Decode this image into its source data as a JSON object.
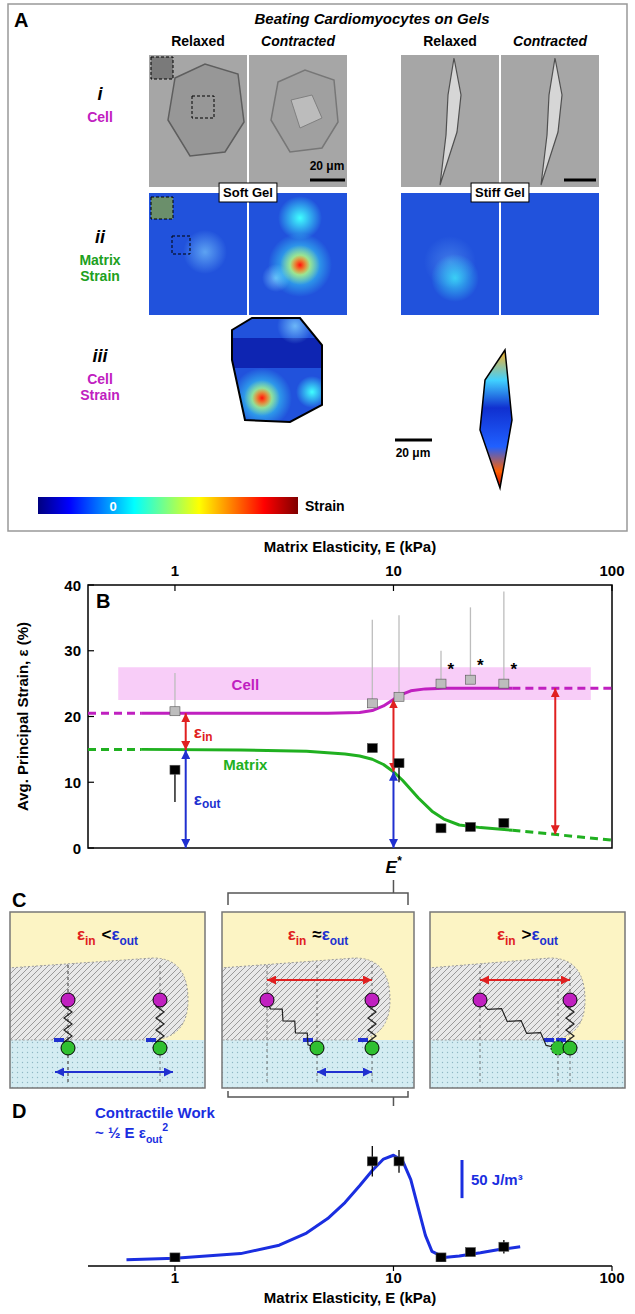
{
  "panel_a": {
    "letter": "A",
    "title": "Beating Cardiomyocytes on Gels",
    "columns": [
      "Relaxed",
      "Contracted",
      "Relaxed",
      "Contracted"
    ],
    "rows": [
      {
        "numeral": "i",
        "label": "Cell",
        "color": "#c020c0"
      },
      {
        "numeral": "ii",
        "label": "Matrix Strain",
        "color": "#20a020"
      },
      {
        "numeral": "iii",
        "label": "Cell Strain",
        "color": "#c020c0"
      }
    ],
    "gels": [
      "Soft Gel",
      "Stiff Gel"
    ],
    "scale_bar": "20 μm",
    "colorbar": {
      "ticks": [
        0
      ],
      "label": "Strain"
    }
  },
  "chart_data": [
    {
      "type": "scatter",
      "panel_label": "B",
      "x_label": "Matrix Elasticity, E (kPa)",
      "y_label": "Avg. Principal Strain, ε (%)",
      "log": "x",
      "xlim": [
        0.4,
        100
      ],
      "xticks": [
        1,
        10,
        100
      ],
      "ylim": [
        0,
        40
      ],
      "yticks": [
        0,
        10,
        20,
        30,
        40
      ],
      "series": [
        {
          "type": "band",
          "color": "#f090f0",
          "x": [
            0.55,
            80
          ],
          "low": [
            22.5,
            22.5
          ],
          "values": [
            27.5,
            27.5
          ]
        },
        {
          "type": "line",
          "line_style": "dashed",
          "color": "#c020c0",
          "x": [
            0.4,
            0.7
          ],
          "values": [
            20.5,
            20.5
          ]
        },
        {
          "type": "line",
          "line_style": "solid",
          "color": "#c020c0",
          "x": [
            0.7,
            2,
            5,
            7,
            8,
            9,
            10,
            11,
            12,
            14,
            17,
            20,
            25,
            35
          ],
          "values": [
            20.5,
            20.5,
            20.5,
            20.6,
            20.9,
            21.6,
            22.6,
            23.4,
            23.9,
            24.2,
            24.3,
            24.3,
            24.3,
            24.3
          ]
        },
        {
          "type": "line",
          "line_style": "dashed",
          "color": "#c020c0",
          "x": [
            35,
            50,
            100
          ],
          "values": [
            24.3,
            24.3,
            24.3
          ]
        },
        {
          "type": "line",
          "line_style": "dashed",
          "color": "#20b020",
          "x": [
            0.4,
            0.7
          ],
          "values": [
            15,
            15
          ]
        },
        {
          "type": "line",
          "line_style": "solid",
          "color": "#20b020",
          "x": [
            0.7,
            2,
            4,
            6,
            7,
            8,
            9,
            10,
            11,
            12,
            13,
            15,
            17,
            20,
            25,
            35
          ],
          "values": [
            15,
            14.9,
            14.7,
            14.3,
            14,
            13.5,
            12.7,
            11.6,
            10.3,
            8.9,
            7.6,
            5.6,
            4.4,
            3.5,
            3.1,
            2.7
          ]
        },
        {
          "type": "line",
          "line_style": "dashed",
          "color": "#20b020",
          "x": [
            35,
            50,
            70,
            100
          ],
          "values": [
            2.7,
            2.2,
            1.7,
            1.2
          ]
        },
        {
          "type": "scatter",
          "marker": "square",
          "color": "#bdbdbd",
          "x": [
            1,
            8,
            10.6,
            16.5,
            22.5,
            32
          ],
          "values": [
            20.8,
            22,
            23,
            25,
            25.6,
            25
          ],
          "errors": [
            5.8,
            12.7,
            12.4,
            5,
            11,
            14
          ]
        },
        {
          "type": "scatter",
          "marker": "square",
          "color": "#000000",
          "x": [
            1,
            8,
            10.6,
            16.5,
            22.5,
            32
          ],
          "values": [
            11.9,
            15.2,
            12.9,
            3,
            3.2,
            3.8
          ],
          "errors": [
            4.9,
            0,
            2.9,
            0,
            0,
            0
          ]
        }
      ],
      "arrows": [
        {
          "x": 1.12,
          "from": 14.9,
          "to": 20.5,
          "color": "#e02020"
        },
        {
          "x": 1.12,
          "from": 0,
          "to": 14.9,
          "color": "#2030d0"
        },
        {
          "x": 10,
          "from": 11.6,
          "to": 22.6,
          "color": "#e02020"
        },
        {
          "x": 10,
          "from": 0,
          "to": 11.6,
          "color": "#2030d0"
        },
        {
          "x": 55,
          "from": 2.1,
          "to": 24.3,
          "color": "#e02020"
        }
      ],
      "annotations": [
        {
          "text": "Cell",
          "x": 2.1,
          "y": 25,
          "color": "#c020c0"
        },
        {
          "text": "Matrix",
          "x": 2.1,
          "y": 12.8,
          "color": "#20b020"
        },
        {
          "text": "ε",
          "sub": "in",
          "x": 1.22,
          "y": 17.7,
          "color": "#e02020"
        },
        {
          "text": "ε",
          "sub": "out",
          "x": 1.22,
          "y": 7.5,
          "color": "#2030d0"
        },
        {
          "text": "*",
          "x": 18.3,
          "y": 27.2
        },
        {
          "text": "*",
          "x": 25,
          "y": 27.8
        },
        {
          "text": "*",
          "x": 35.5,
          "y": 27.2
        }
      ],
      "critical": {
        "text": "E",
        "sup": "*",
        "x": 10
      }
    },
    {
      "type": "line",
      "panel_label": "D",
      "x_label": "Matrix Elasticity, E (kPa)",
      "log": "x",
      "xlim": [
        0.4,
        100
      ],
      "xticks": [
        1,
        10,
        100
      ],
      "ylim": [
        0,
        160
      ],
      "tick_labels": "x",
      "legend": "top-left",
      "series": [
        {
          "name": "Contractile Work",
          "type": "line",
          "line_style": "solid",
          "color": "#1a2ee0",
          "x": [
            0.6,
            1,
            2,
            3,
            4,
            5,
            6,
            7,
            8,
            9,
            10,
            11,
            12,
            13,
            14,
            15,
            17,
            20,
            25,
            30,
            38
          ],
          "values": [
            3,
            5,
            11,
            22,
            38,
            57,
            78,
            100,
            120,
            135,
            140,
            133,
            108,
            70,
            35,
            14,
            6,
            8,
            12,
            16,
            20
          ]
        },
        {
          "type": "scatter",
          "marker": "square",
          "color": "#000000",
          "x": [
            1,
            8,
            10.6,
            16.5,
            22.5,
            32
          ],
          "values": [
            6,
            132,
            132,
            6,
            13,
            20
          ],
          "errors": [
            5,
            20,
            15,
            5,
            4,
            9
          ]
        }
      ],
      "annotations": [
        {
          "text": "~ ½ E ε",
          "sub": "out",
          "sup": "2",
          "color": "#1a2ee0"
        }
      ],
      "scale_bar": {
        "value": 50,
        "label": "50 J/m³",
        "color": "#1a2ee0"
      }
    }
  ],
  "panel_c": {
    "letter": "C",
    "boxes": [
      {
        "left": {
          "text": "ε",
          "sub": "in",
          "color": "#e02020"
        },
        "relation": "<",
        "right": {
          "text": "ε",
          "sub": "out",
          "color": "#2030d0"
        }
      },
      {
        "left": {
          "text": "ε",
          "sub": "in",
          "color": "#e02020"
        },
        "relation": "≈",
        "right": {
          "text": "ε",
          "sub": "out",
          "color": "#2030d0"
        }
      },
      {
        "left": {
          "text": "ε",
          "sub": "in",
          "color": "#e02020"
        },
        "relation": ">",
        "right": {
          "text": "ε",
          "sub": "out",
          "color": "#2030d0"
        }
      }
    ]
  }
}
